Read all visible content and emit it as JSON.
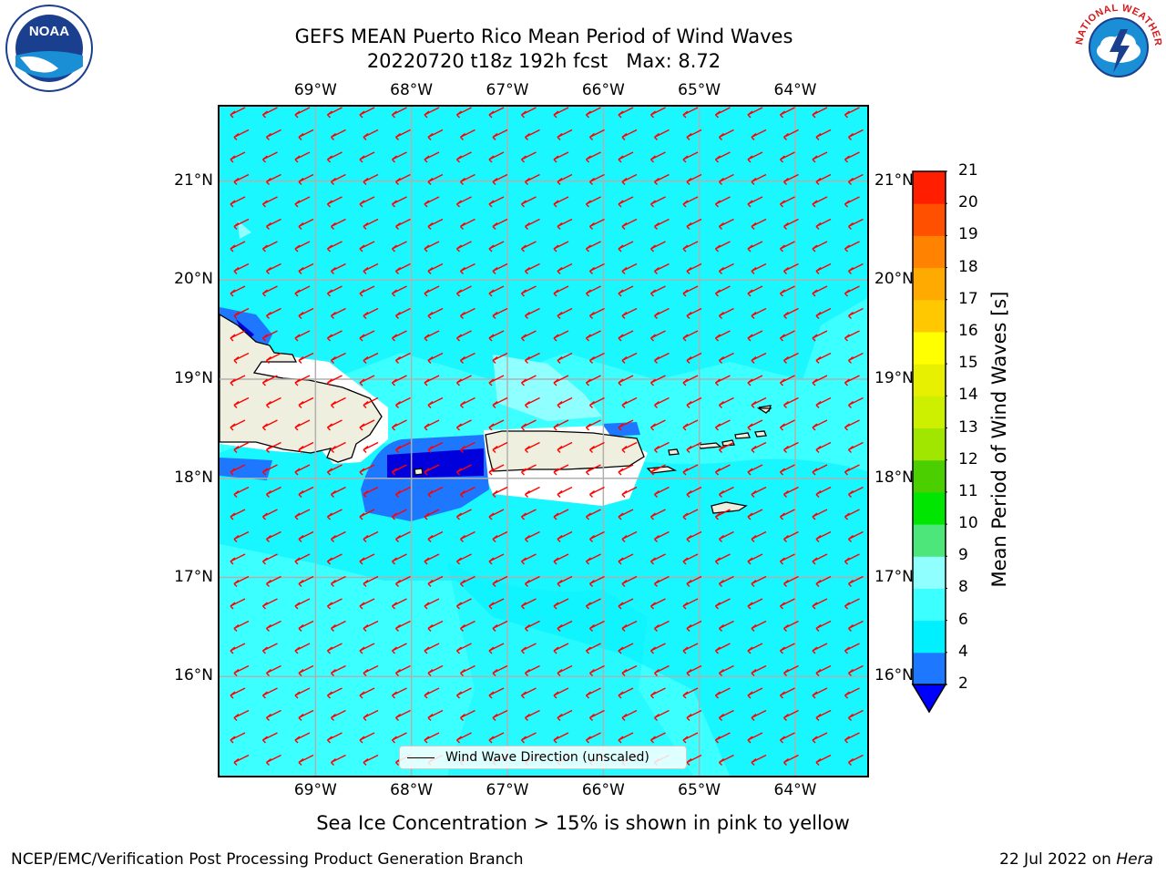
{
  "title": {
    "line1": "GEFS MEAN Puerto Rico Mean Period of Wind Waves",
    "line2": "20220720 t18z 192h fcst   Max: 8.72"
  },
  "axes": {
    "lon_labels": [
      "69°W",
      "68°W",
      "67°W",
      "66°W",
      "65°W",
      "64°W"
    ],
    "lon_values": [
      -69,
      -68,
      -67,
      -66,
      -65,
      -64
    ],
    "lat_labels": [
      "21°N",
      "20°N",
      "19°N",
      "18°N",
      "17°N",
      "16°N"
    ],
    "lat_values": [
      21,
      20,
      19,
      18,
      17,
      16
    ],
    "lon_range": [
      -70.0,
      -63.25
    ],
    "lat_range": [
      15.0,
      21.75
    ],
    "grid": true
  },
  "legend": {
    "label": "Wind Wave Direction (unscaled)",
    "placement": "bottom-center"
  },
  "colorbar": {
    "title": "Mean Period of Wind Waves [s]",
    "ticks": [
      "2",
      "4",
      "6",
      "8",
      "9",
      "10",
      "11",
      "12",
      "13",
      "14",
      "15",
      "16",
      "17",
      "18",
      "19",
      "20",
      "21"
    ],
    "colors": [
      "#0000ff",
      "#1e78ff",
      "#00f0ff",
      "#3cffff",
      "#90ffff",
      "#4ce67a",
      "#00e600",
      "#4ccf00",
      "#a0e600",
      "#ccf000",
      "#e6f000",
      "#ffff00",
      "#ffc800",
      "#ffaa00",
      "#ff8200",
      "#ff5000",
      "#ff1e00",
      "#ff0000"
    ],
    "extend": "min"
  },
  "chart_data": {
    "type": "heatmap",
    "variable": "Mean Period of Wind Waves [s]",
    "max": 8.72,
    "wind_wave_direction": "toward west-southwest",
    "regions": [
      {
        "area": "open sea",
        "period_range_s": "6-8"
      },
      {
        "area": "south of Mona Passage",
        "period_range_s": "2-6"
      },
      {
        "area": "west of Puerto Rico",
        "period_range_s": "< 2"
      }
    ],
    "land": [
      "Hispaniola",
      "Puerto Rico",
      "Virgin Islands"
    ]
  },
  "notes": {
    "ice": "Sea Ice Concentration > 15% is shown in pink to yellow"
  },
  "footer": {
    "left": "NCEP/EMC/Verification Post Processing Product Generation Branch",
    "right_date": "22 Jul 2022 on ",
    "right_host": "Hera"
  },
  "logos": {
    "noaa": {
      "name": "noaa-logo",
      "text": "NOAA"
    },
    "nws": {
      "name": "nws-logo",
      "text": "NATIONAL WEATHER SERVICE"
    }
  },
  "colors": {
    "arrow": "#ff0000",
    "land": "#efefdf",
    "coast": "#000000",
    "grid": "#b0b0b0"
  }
}
